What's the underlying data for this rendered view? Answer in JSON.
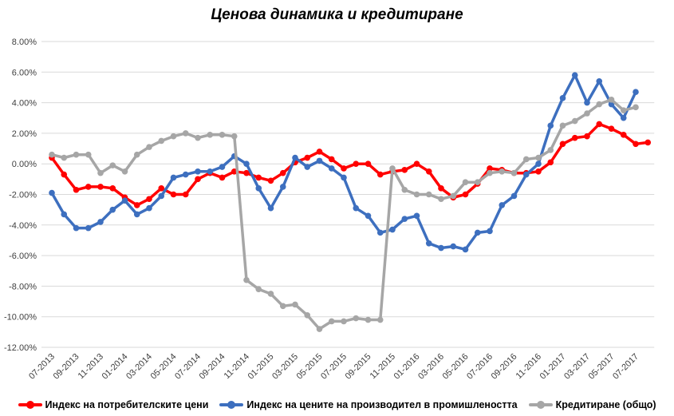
{
  "chart_data": {
    "type": "line",
    "title": "Ценова динамика и кредитиране",
    "xlabel": "",
    "ylabel": "",
    "ylim": [
      -0.12,
      0.08
    ],
    "yticks": [
      0.08,
      0.06,
      0.04,
      0.02,
      0.0,
      -0.02,
      -0.04,
      -0.06,
      -0.08,
      -0.1,
      -0.12
    ],
    "ytick_labels": [
      "8.00%",
      "6.00%",
      "4.00%",
      "2.00%",
      "0.00%",
      "-2.00%",
      "-4.00%",
      "-6.00%",
      "-8.00%",
      "-10.00%",
      "-12.00%"
    ],
    "grid": true,
    "legend_position": "bottom",
    "categories": [
      "07-2013",
      "08-2013",
      "09-2013",
      "10-2013",
      "11-2013",
      "12-2013",
      "01-2014",
      "02-2014",
      "03-2014",
      "04-2014",
      "05-2014",
      "06-2014",
      "07-2014",
      "08-2014",
      "09-2014",
      "10-2014",
      "11-2014",
      "12-2014",
      "01-2015",
      "02-2015",
      "03-2015",
      "04-2015",
      "05-2015",
      "06-2015",
      "07-2015",
      "08-2015",
      "09-2015",
      "10-2015",
      "11-2015",
      "12-2015",
      "01-2016",
      "02-2016",
      "03-2016",
      "04-2016",
      "05-2016",
      "06-2016",
      "07-2016",
      "08-2016",
      "09-2016",
      "10-2016",
      "11-2016",
      "12-2016",
      "01-2017",
      "02-2017",
      "03-2017",
      "04-2017",
      "05-2017",
      "06-2017",
      "07-2017",
      "08-2017"
    ],
    "xtick_labels": [
      "07-2013",
      "09-2013",
      "11-2013",
      "01-2014",
      "03-2014",
      "05-2014",
      "07-2014",
      "09-2014",
      "11-2014",
      "01-2015",
      "03-2015",
      "05-2015",
      "07-2015",
      "09-2015",
      "11-2015",
      "01-2016",
      "03-2016",
      "05-2016",
      "07-2016",
      "09-2016",
      "11-2016",
      "01-2017",
      "03-2017",
      "05-2017",
      "07-2017"
    ],
    "series": [
      {
        "name": "Индекс на потребителските цени",
        "color": "#ff0000",
        "values": [
          0.004,
          -0.007,
          -0.017,
          -0.015,
          -0.015,
          -0.016,
          -0.022,
          -0.027,
          -0.023,
          -0.016,
          -0.02,
          -0.02,
          -0.01,
          -0.006,
          -0.009,
          -0.005,
          -0.006,
          -0.009,
          -0.011,
          -0.006,
          0.001,
          0.004,
          0.008,
          0.003,
          -0.003,
          0.0,
          0.0,
          -0.007,
          -0.005,
          -0.004,
          0.0,
          -0.005,
          -0.016,
          -0.022,
          -0.02,
          -0.013,
          -0.003,
          -0.004,
          -0.006,
          -0.006,
          -0.005,
          0.001,
          0.013,
          0.017,
          0.018,
          0.026,
          0.023,
          0.019,
          0.013,
          0.014
        ]
      },
      {
        "name": "Индекс на цените на производител в промишлеността",
        "color": "#3d6fbf",
        "values": [
          -0.019,
          -0.033,
          -0.042,
          -0.042,
          -0.038,
          -0.03,
          -0.024,
          -0.033,
          -0.029,
          -0.021,
          -0.009,
          -0.007,
          -0.005,
          -0.005,
          -0.002,
          0.005,
          0.0,
          -0.016,
          -0.029,
          -0.015,
          0.004,
          -0.002,
          0.002,
          -0.003,
          -0.009,
          -0.029,
          -0.034,
          -0.045,
          -0.043,
          -0.036,
          -0.034,
          -0.052,
          -0.055,
          -0.054,
          -0.056,
          -0.045,
          -0.044,
          -0.027,
          -0.021,
          -0.007,
          0.0,
          0.025,
          0.043,
          0.058,
          0.04,
          0.054,
          0.039,
          0.03,
          0.047,
          null
        ]
      },
      {
        "name": "Кредитиране (общо)",
        "color": "#a6a6a6",
        "values": [
          0.006,
          0.004,
          0.006,
          0.006,
          -0.006,
          -0.001,
          -0.005,
          0.006,
          0.011,
          0.015,
          0.018,
          0.02,
          0.017,
          0.019,
          0.019,
          0.018,
          -0.076,
          -0.082,
          -0.085,
          -0.093,
          -0.092,
          -0.099,
          -0.108,
          -0.103,
          -0.103,
          -0.101,
          -0.102,
          -0.102,
          -0.003,
          -0.017,
          -0.02,
          -0.02,
          -0.023,
          -0.021,
          -0.012,
          -0.012,
          -0.006,
          -0.005,
          -0.006,
          0.003,
          0.004,
          0.009,
          0.025,
          0.028,
          0.033,
          0.039,
          0.042,
          0.035,
          0.037,
          null
        ]
      }
    ]
  }
}
